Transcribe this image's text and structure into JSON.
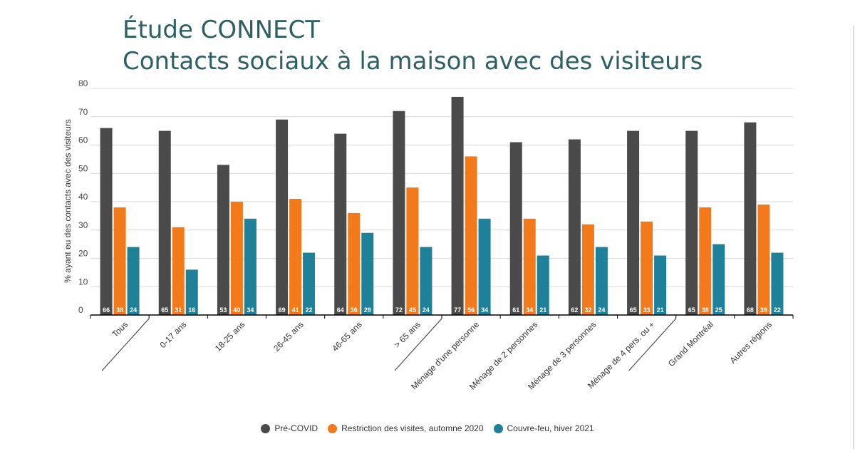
{
  "header": {
    "title_line1": "Étude CONNECT",
    "title_line2": "Contacts sociaux à la maison avec des visiteurs"
  },
  "colors": {
    "title": "#2e5f63",
    "pre_covid": "#4a4a4a",
    "restriction": "#f27a1a",
    "couvre_feu": "#1f809a"
  },
  "chart_data": {
    "type": "bar",
    "title": "",
    "xlabel": "",
    "ylabel": "% ayant eu des contacts avec des visiteurs",
    "ylim": [
      0,
      80
    ],
    "yticks": [
      0,
      10,
      20,
      30,
      40,
      50,
      60,
      70,
      80
    ],
    "grid": true,
    "legend_position": "bottom",
    "categories": [
      "Tous",
      "0-17 ans",
      "18-25 ans",
      "26-45 ans",
      "46-65 ans",
      "> 65 ans",
      "Ménage d'une personne",
      "Ménage de 2 personnes",
      "Ménage de 3 personnes",
      "Ménage de 4 pers. ou +",
      "Grand Montréal",
      "Autres régions"
    ],
    "series": [
      {
        "name": "Pré-COVID",
        "color": "#4a4a4a",
        "values": [
          66,
          65,
          53,
          69,
          64,
          72,
          77,
          61,
          62,
          65,
          65,
          68
        ]
      },
      {
        "name": "Restriction des visites, automne 2020",
        "color": "#f27a1a",
        "values": [
          38,
          31,
          40,
          41,
          36,
          45,
          56,
          34,
          32,
          33,
          38,
          39
        ]
      },
      {
        "name": "Couvre-feu, hiver 2021",
        "color": "#1f809a",
        "values": [
          24,
          16,
          34,
          22,
          29,
          24,
          34,
          21,
          24,
          21,
          25,
          22
        ]
      }
    ]
  }
}
